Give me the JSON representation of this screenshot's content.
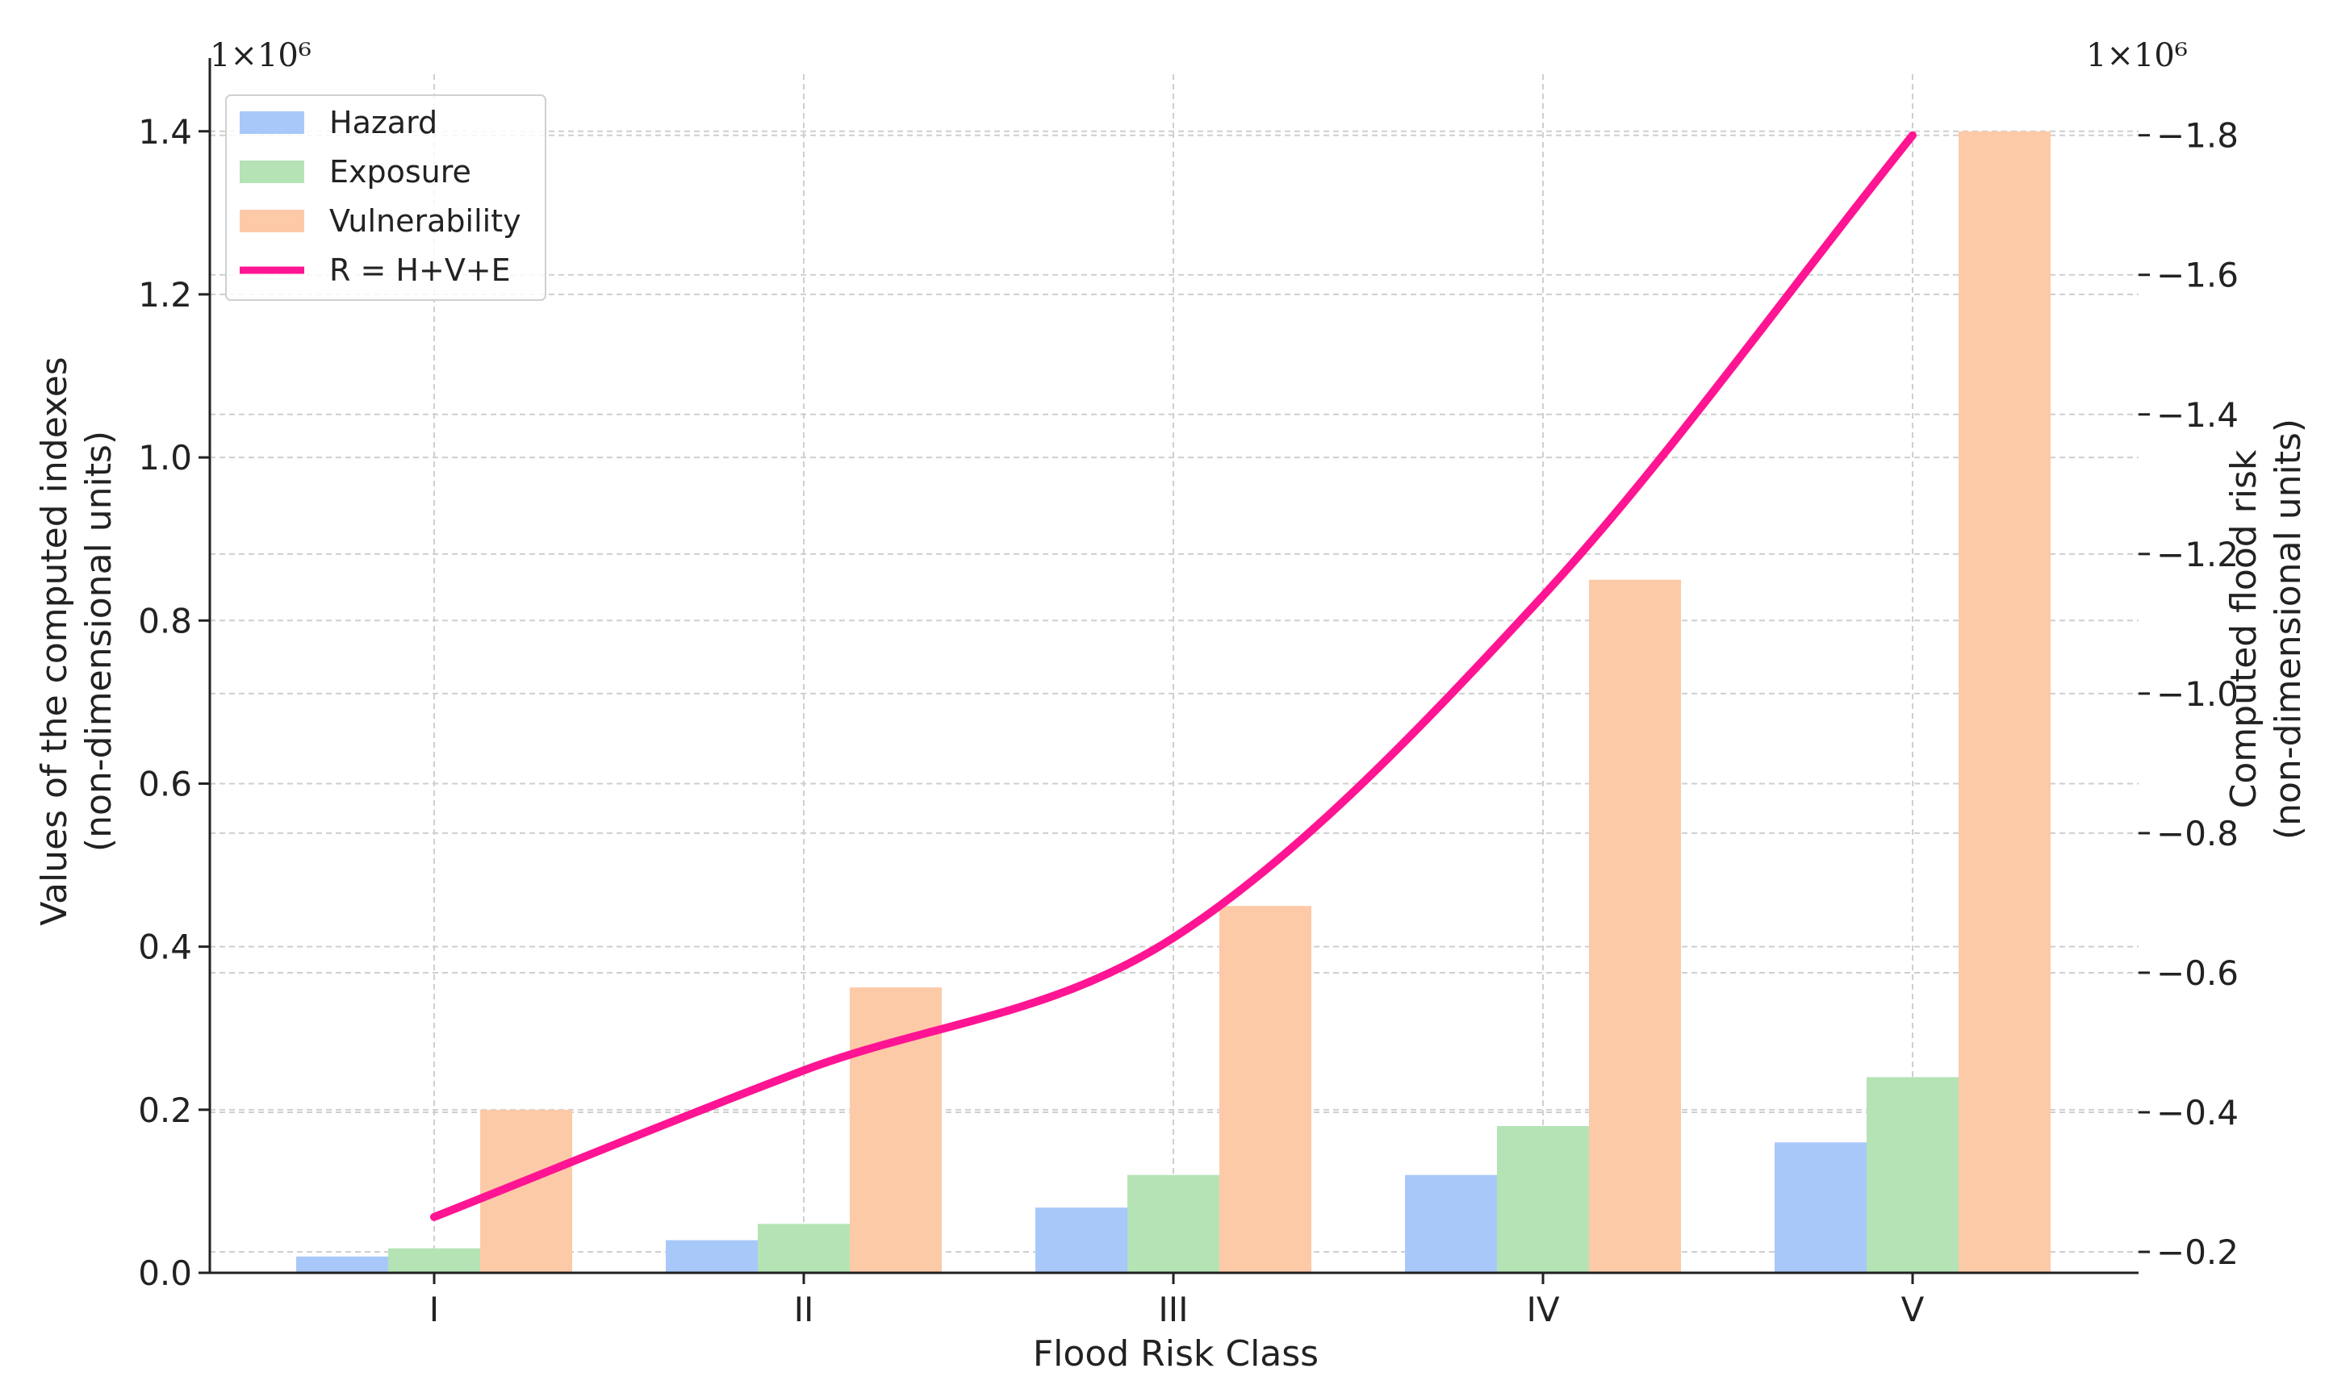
{
  "chart_data": {
    "type": "bar",
    "xlabel": "Flood Risk Class",
    "categories": [
      "I",
      "II",
      "III",
      "IV",
      "V"
    ],
    "y_left": {
      "label_lines": [
        "Values of the computed indexes",
        "(non-dimensional units)"
      ],
      "multiplier": "1×10⁶",
      "ylim": [
        0,
        1.47
      ],
      "ticks": [
        0.0,
        0.2,
        0.4,
        0.6,
        0.8,
        1.0,
        1.2,
        1.4
      ],
      "tick_labels": [
        "0.0",
        "0.2",
        "0.4",
        "0.6",
        "0.8",
        "1.0",
        "1.2",
        "1.4"
      ]
    },
    "y_right": {
      "label_lines": [
        "Computed flood risk",
        "(non-dimensional units)"
      ],
      "multiplier": "1×10⁶",
      "ylim": [
        0.17,
        1.8875
      ],
      "ticks": [
        0.2,
        0.4,
        0.6,
        0.8,
        1.0,
        1.2,
        1.4,
        1.6,
        1.8
      ],
      "tick_labels": [
        "0.2",
        "0.4",
        "0.6",
        "0.8",
        "1.0",
        "1.2",
        "1.4",
        "1.6",
        "1.8"
      ]
    },
    "series": [
      {
        "name": "Hazard",
        "axis": "left",
        "kind": "bar",
        "color": "#a8c8fa",
        "values": [
          0.02,
          0.04,
          0.08,
          0.12,
          0.16
        ]
      },
      {
        "name": "Exposure",
        "axis": "left",
        "kind": "bar",
        "color": "#b5e3b5",
        "values": [
          0.03,
          0.06,
          0.12,
          0.18,
          0.24
        ]
      },
      {
        "name": "Vulnerability",
        "axis": "left",
        "kind": "bar",
        "color": "#fdcaa8",
        "values": [
          0.2,
          0.35,
          0.45,
          0.85,
          1.4
        ]
      },
      {
        "name": "R = H+V+E",
        "axis": "right",
        "kind": "line",
        "color": "#ff1493",
        "values": [
          0.25,
          0.46,
          0.65,
          1.14,
          1.8
        ]
      }
    ],
    "grid": true,
    "legend_position": "top-left"
  }
}
